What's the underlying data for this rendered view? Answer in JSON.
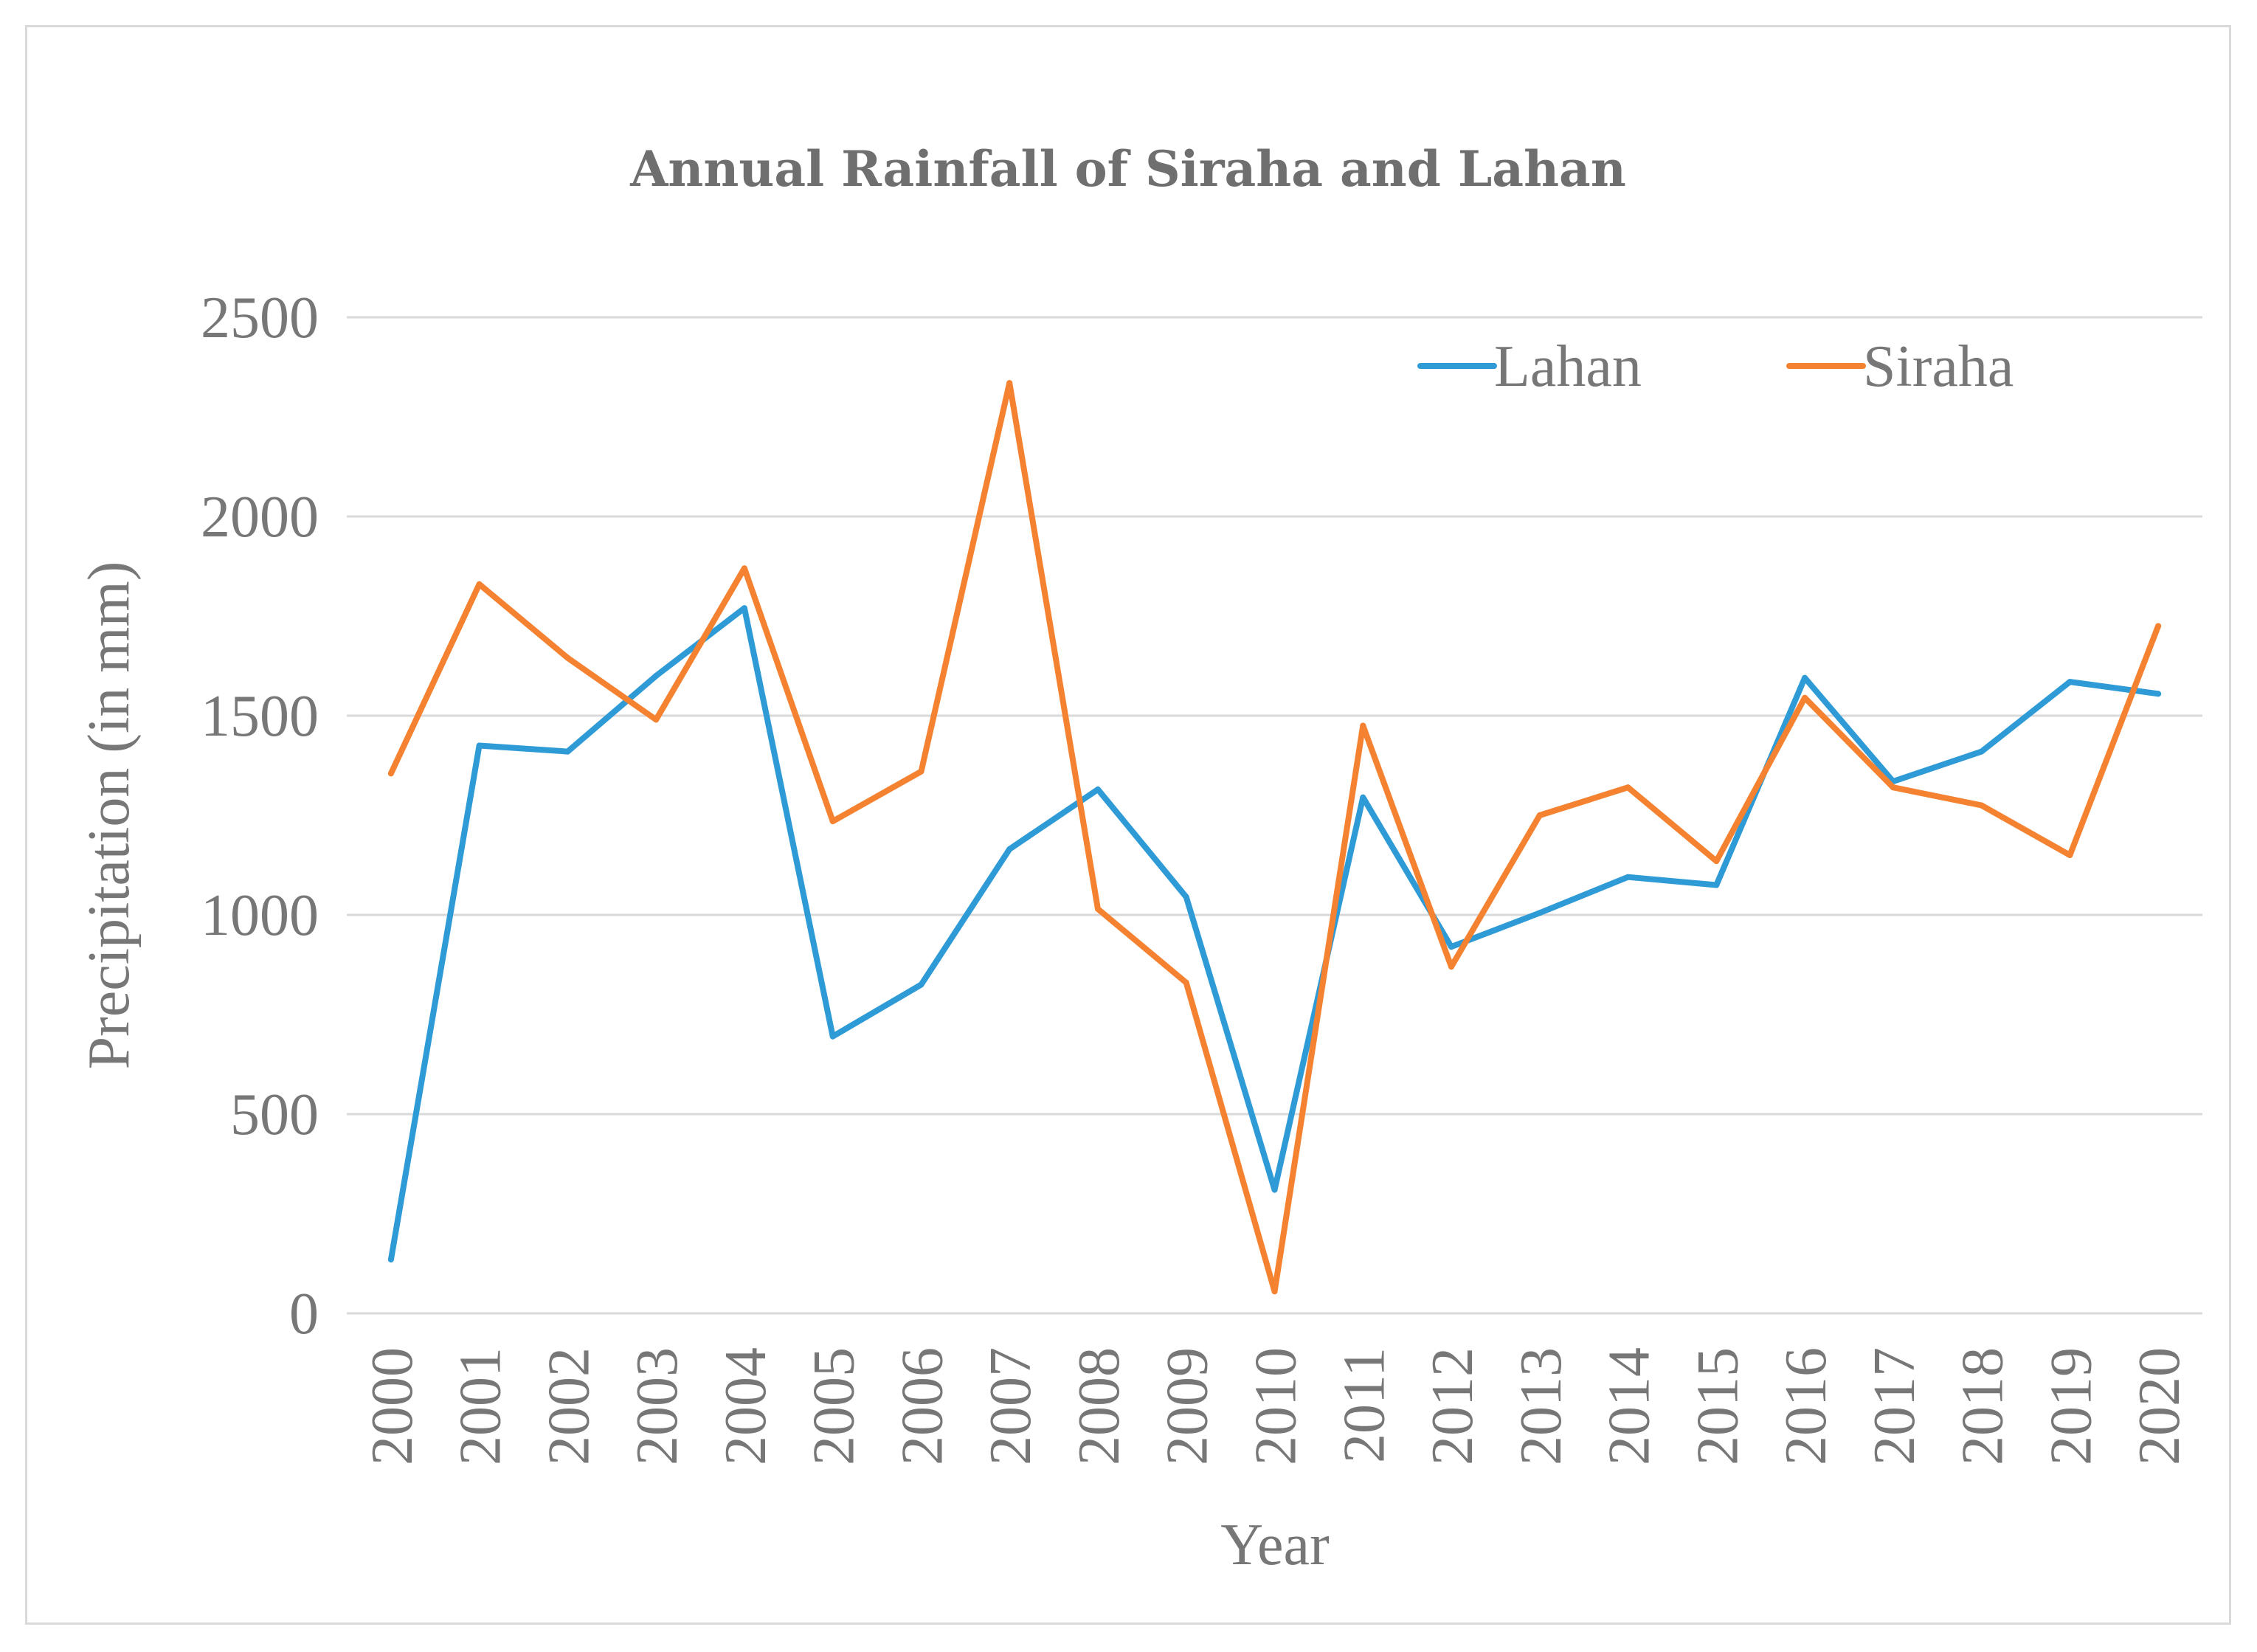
{
  "chart_data": {
    "type": "line",
    "title": "Annual Rainfall of Siraha and Lahan",
    "xlabel": "Year",
    "ylabel": "Precipitation (in mm)",
    "ylim": [
      0,
      2500
    ],
    "yticks": [
      "0",
      "500",
      "1000",
      "1500",
      "2000",
      "2500"
    ],
    "ytick_values": [
      0,
      500,
      1000,
      1500,
      2000,
      2500
    ],
    "grid": true,
    "legend_position": "top-right",
    "categories": [
      "2000",
      "2001",
      "2002",
      "2003",
      "2004",
      "2005",
      "2006",
      "2007",
      "2008",
      "2009",
      "2010",
      "2011",
      "2012",
      "2013",
      "2014",
      "2015",
      "2016",
      "2017",
      "2018",
      "2019",
      "2020"
    ],
    "series": [
      {
        "name": "Lahan",
        "color": "#2f9bd6",
        "values": [
          135,
          1425,
          1410,
          1600,
          1770,
          695,
          825,
          1165,
          1315,
          1045,
          310,
          1295,
          920,
          1005,
          1095,
          1075,
          1595,
          1335,
          1410,
          1585,
          1555
        ]
      },
      {
        "name": "Siraha",
        "color": "#f58231",
        "values": [
          1355,
          1830,
          1645,
          1490,
          1870,
          1235,
          1360,
          2335,
          1015,
          830,
          55,
          1475,
          870,
          1250,
          1320,
          1135,
          1545,
          1320,
          1275,
          1150,
          1725
        ]
      }
    ]
  }
}
